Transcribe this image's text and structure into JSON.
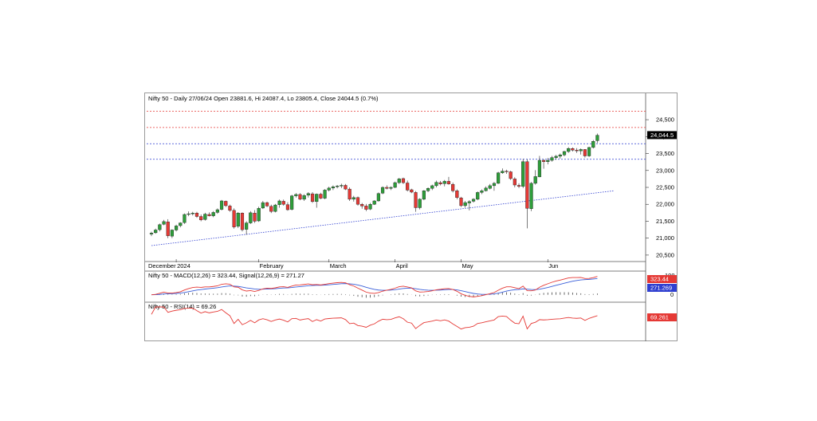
{
  "colors": {
    "up": "#2e9e3a",
    "down": "#e53935",
    "macd": "#e53935",
    "signal": "#3a5fd9",
    "rsi": "#e53935",
    "trend": "#2f3fd0",
    "resist": "#e53935",
    "support": "#2f3fd0"
  },
  "chart_data": [
    {
      "type": "candlestick",
      "header": "Nifty 50 - Daily 27/06/24 Open 23881.6, Hi 24087.4, Lo 23805.4, Close 24044.5 (0.7%)",
      "ylim": [
        20380,
        24950
      ],
      "yticks": [
        "24,500",
        "24,000",
        "23,500",
        "23,000",
        "22,500",
        "22,000",
        "21,500",
        "21,000",
        "20,500"
      ],
      "last_price_label": "24,044.5",
      "month_labels": [
        "December",
        "2024",
        "February",
        "March",
        "April",
        "May",
        "Jun"
      ],
      "month_positions": [
        0,
        6,
        26,
        43,
        59,
        75,
        96
      ],
      "horizontal_levels": [
        {
          "value": 24750,
          "style": "resist"
        },
        {
          "value": 24270,
          "style": "resist"
        },
        {
          "value": 23790,
          "style": "support"
        },
        {
          "value": 23330,
          "style": "support"
        }
      ],
      "trendline": {
        "from": [
          0,
          20780
        ],
        "to": [
          112,
          22400
        ]
      },
      "candles": [
        [
          21120,
          21190,
          21060,
          21150
        ],
        [
          21160,
          21280,
          21130,
          21240
        ],
        [
          21250,
          21430,
          21200,
          21400
        ],
        [
          21410,
          21540,
          21380,
          21490
        ],
        [
          21480,
          21560,
          21000,
          21070
        ],
        [
          21060,
          21260,
          21000,
          21240
        ],
        [
          21240,
          21400,
          21200,
          21360
        ],
        [
          21370,
          21470,
          21320,
          21450
        ],
        [
          21460,
          21730,
          21420,
          21700
        ],
        [
          21700,
          21790,
          21650,
          21720
        ],
        [
          21720,
          21780,
          21670,
          21740
        ],
        [
          21740,
          21780,
          21600,
          21640
        ],
        [
          21640,
          21700,
          21500,
          21540
        ],
        [
          21550,
          21750,
          21520,
          21710
        ],
        [
          21700,
          21760,
          21640,
          21660
        ],
        [
          21660,
          21800,
          21620,
          21760
        ],
        [
          21760,
          21880,
          21720,
          21840
        ],
        [
          21850,
          22130,
          21820,
          22100
        ],
        [
          22090,
          22110,
          21920,
          21960
        ],
        [
          21950,
          21990,
          21780,
          21820
        ],
        [
          21820,
          21880,
          21280,
          21330
        ],
        [
          21350,
          21770,
          21300,
          21740
        ],
        [
          21740,
          21760,
          21200,
          21250
        ],
        [
          21260,
          21500,
          21100,
          21450
        ],
        [
          21450,
          21800,
          21420,
          21750
        ],
        [
          21740,
          21830,
          21450,
          21500
        ],
        [
          21510,
          21930,
          21480,
          21880
        ],
        [
          21890,
          22100,
          21860,
          22050
        ],
        [
          22050,
          22080,
          21920,
          21950
        ],
        [
          21940,
          21990,
          21740,
          21790
        ],
        [
          21790,
          22010,
          21760,
          21980
        ],
        [
          21990,
          22140,
          21900,
          22100
        ],
        [
          22090,
          22140,
          21960,
          22000
        ],
        [
          21990,
          22060,
          21810,
          21840
        ],
        [
          21850,
          22280,
          21820,
          22250
        ],
        [
          22250,
          22330,
          22200,
          22290
        ],
        [
          22290,
          22330,
          22120,
          22150
        ],
        [
          22150,
          22300,
          22100,
          22260
        ],
        [
          22270,
          22360,
          22200,
          22320
        ],
        [
          22310,
          22360,
          22040,
          22080
        ],
        [
          22080,
          22320,
          21900,
          22300
        ],
        [
          22300,
          22340,
          22150,
          22180
        ],
        [
          22180,
          22450,
          22150,
          22420
        ],
        [
          22420,
          22520,
          22380,
          22480
        ],
        [
          22480,
          22560,
          22420,
          22520
        ],
        [
          22520,
          22570,
          22470,
          22540
        ],
        [
          22540,
          22610,
          22480,
          22560
        ],
        [
          22560,
          22600,
          22420,
          22450
        ],
        [
          22450,
          22500,
          22100,
          22150
        ],
        [
          22150,
          22250,
          22080,
          22200
        ],
        [
          22200,
          22230,
          21960,
          22000
        ],
        [
          22000,
          22040,
          21870,
          21950
        ],
        [
          21950,
          22010,
          21800,
          21850
        ],
        [
          21860,
          22040,
          21830,
          22000
        ],
        [
          22000,
          22120,
          21980,
          22100
        ],
        [
          22100,
          22350,
          22080,
          22320
        ],
        [
          22330,
          22530,
          22300,
          22500
        ],
        [
          22500,
          22560,
          22440,
          22470
        ],
        [
          22470,
          22530,
          22420,
          22500
        ],
        [
          22500,
          22670,
          22480,
          22640
        ],
        [
          22640,
          22780,
          22600,
          22750
        ],
        [
          22760,
          22790,
          22600,
          22640
        ],
        [
          22630,
          22700,
          22380,
          22420
        ],
        [
          22430,
          22460,
          22330,
          22360
        ],
        [
          22350,
          22390,
          21780,
          21900
        ],
        [
          21900,
          22180,
          21850,
          22150
        ],
        [
          22150,
          22420,
          22120,
          22400
        ],
        [
          22400,
          22500,
          22360,
          22470
        ],
        [
          22470,
          22580,
          22420,
          22550
        ],
        [
          22550,
          22700,
          22500,
          22650
        ],
        [
          22640,
          22690,
          22560,
          22600
        ],
        [
          22610,
          22720,
          22530,
          22680
        ],
        [
          22680,
          22810,
          22580,
          22600
        ],
        [
          22590,
          22640,
          22350,
          22400
        ],
        [
          22400,
          22440,
          22150,
          22200
        ],
        [
          22190,
          22220,
          21920,
          21960
        ],
        [
          21960,
          22100,
          21900,
          22050
        ],
        [
          22040,
          22120,
          21820,
          22080
        ],
        [
          22090,
          22180,
          22050,
          22150
        ],
        [
          22150,
          22380,
          22120,
          22350
        ],
        [
          22350,
          22440,
          22300,
          22400
        ],
        [
          22400,
          22530,
          22380,
          22480
        ],
        [
          22470,
          22600,
          22440,
          22550
        ],
        [
          22550,
          22660,
          22400,
          22620
        ],
        [
          22620,
          22960,
          22600,
          22930
        ],
        [
          22930,
          23060,
          22900,
          22980
        ],
        [
          22980,
          23020,
          22900,
          22960
        ],
        [
          22960,
          22990,
          22720,
          22760
        ],
        [
          22750,
          22800,
          22500,
          22570
        ],
        [
          22560,
          22620,
          22480,
          22530
        ],
        [
          22530,
          23340,
          22480,
          23260
        ],
        [
          23260,
          23330,
          21290,
          21880
        ],
        [
          21870,
          22660,
          21800,
          22620
        ],
        [
          22620,
          23010,
          22580,
          22820
        ],
        [
          22810,
          23430,
          22800,
          23300
        ],
        [
          23300,
          23330,
          23050,
          23260
        ],
        [
          23260,
          23370,
          23180,
          23300
        ],
        [
          23300,
          23430,
          23260,
          23380
        ],
        [
          23380,
          23460,
          23320,
          23420
        ],
        [
          23420,
          23500,
          23350,
          23460
        ],
        [
          23460,
          23580,
          23420,
          23560
        ],
        [
          23560,
          23690,
          23520,
          23650
        ],
        [
          23650,
          23680,
          23560,
          23600
        ],
        [
          23600,
          23660,
          23520,
          23580
        ],
        [
          23580,
          23650,
          23470,
          23620
        ],
        [
          23620,
          23630,
          23380,
          23430
        ],
        [
          23430,
          23700,
          23400,
          23680
        ],
        [
          23680,
          23900,
          23650,
          23860
        ],
        [
          23880,
          24090,
          23810,
          24040
        ]
      ]
    },
    {
      "type": "line",
      "header": "Nifty 50 - MACD(12,26) = 323.44,  Signal(12,26,9) = 271.27",
      "ylim": [
        -30,
        110
      ],
      "yticks": [
        "100",
        "0"
      ],
      "macd_label": "323.44",
      "signal_label": "271.269"
    },
    {
      "type": "line",
      "header": "Nifty 50 - RSI(14) = 69.26",
      "ylim": [
        20,
        85
      ],
      "rsi_label": "69.261"
    }
  ]
}
